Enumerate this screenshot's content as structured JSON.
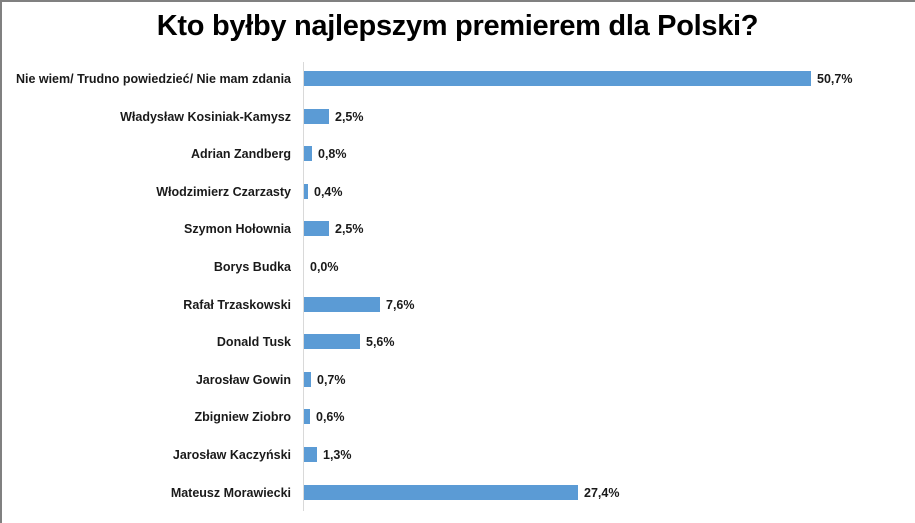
{
  "chart_data": {
    "type": "bar",
    "orientation": "horizontal",
    "title": "Kto byłby najlepszym premierem dla Polski?",
    "xlabel": "",
    "ylabel": "",
    "categories": [
      "Nie wiem/ Trudno powiedzieć/ Nie mam zdania",
      "Władysław Kosiniak-Kamysz",
      "Adrian Zandberg",
      "Włodzimierz Czarzasty",
      "Szymon Hołownia",
      "Borys Budka",
      "Rafał Trzaskowski",
      "Donald Tusk",
      "Jarosław Gowin",
      "Zbigniew Ziobro",
      "Jarosław Kaczyński",
      "Mateusz Morawiecki"
    ],
    "values": [
      50.7,
      2.5,
      0.8,
      0.4,
      2.5,
      0.0,
      7.6,
      5.6,
      0.7,
      0.6,
      1.3,
      27.4
    ],
    "value_labels": [
      "50,7%",
      "2,5%",
      "0,8%",
      "0,4%",
      "2,5%",
      "0,0%",
      "7,6%",
      "5,6%",
      "0,7%",
      "0,6%",
      "1,3%",
      "27,4%"
    ],
    "unit": "%",
    "grid": false,
    "legend": null,
    "bar_color": "#5b9bd5"
  }
}
